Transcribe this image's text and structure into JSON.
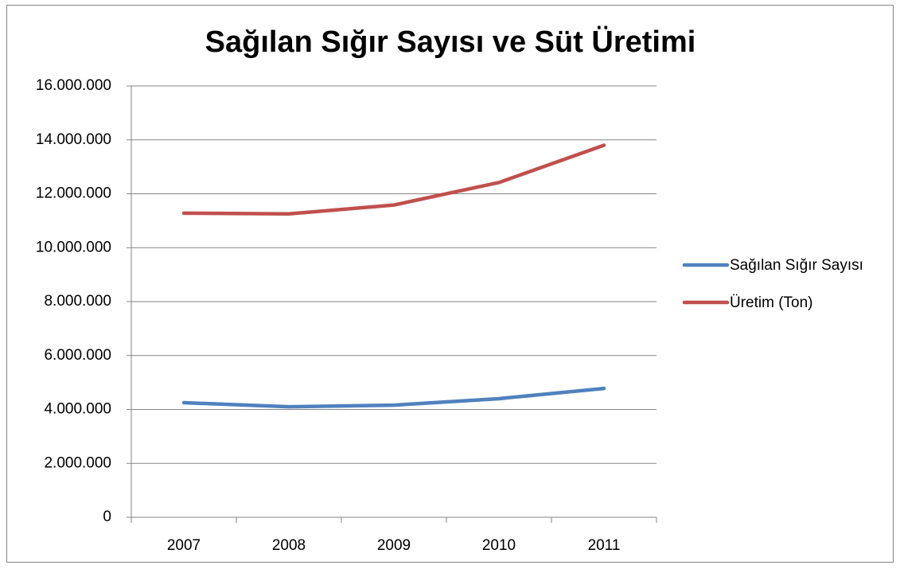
{
  "chart_data": {
    "type": "line",
    "title": "Sağılan Sığır Sayısı ve Süt Üretimi",
    "categories": [
      "2007",
      "2008",
      "2009",
      "2010",
      "2011"
    ],
    "series": [
      {
        "name": "Sağılan Sığır Sayısı",
        "color": "#4f81bd",
        "values": [
          4250000,
          4100000,
          4160000,
          4400000,
          4780000
        ]
      },
      {
        "name": "Üretim (Ton)",
        "color": "#c0504d",
        "values": [
          11280000,
          11255000,
          11583000,
          12418000,
          13802000
        ]
      }
    ],
    "ylim": [
      0,
      16000000
    ],
    "yticks": [
      0,
      {
        "value": 2000000,
        "label": "2.000.000"
      },
      {
        "value": 4000000,
        "label": "4.000.000"
      },
      {
        "value": 6000000,
        "label": "6.000.000"
      },
      {
        "value": 8000000,
        "label": "8.000.000"
      },
      {
        "value": 10000000,
        "label": "10.000.000"
      },
      {
        "value": 12000000,
        "label": "12.000.000"
      },
      {
        "value": 14000000,
        "label": "14.000.000"
      },
      {
        "value": 16000000,
        "label": "16.000.000"
      }
    ],
    "grid": true,
    "legend": "right"
  }
}
